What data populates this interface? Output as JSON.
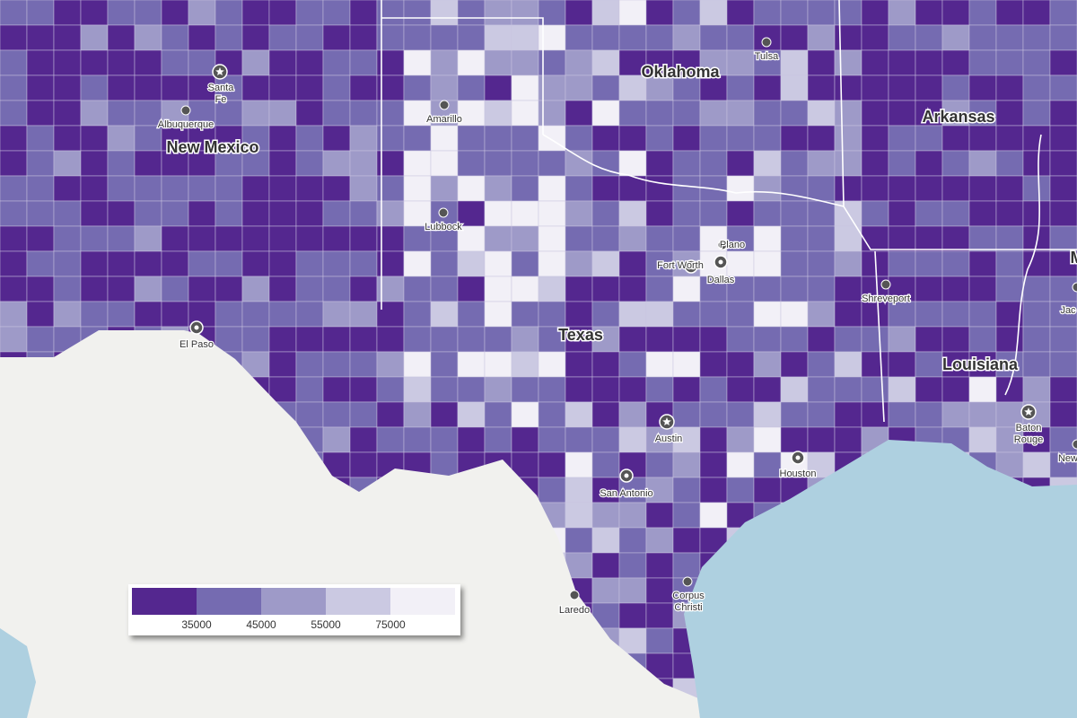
{
  "map": {
    "states": [
      "New Mexico",
      "Oklahoma",
      "Arkansas",
      "Texas",
      "Louisiana",
      "M"
    ],
    "cities": [
      {
        "lines": [
          "Santa",
          "Fe"
        ],
        "marker": "star"
      },
      {
        "lines": [
          "Albuquerque"
        ],
        "marker": "dot"
      },
      {
        "lines": [
          "Amarillo"
        ],
        "marker": "dot"
      },
      {
        "lines": [
          "Lubbock"
        ],
        "marker": "dot"
      },
      {
        "lines": [
          "Tulsa"
        ],
        "marker": "dot"
      },
      {
        "lines": [
          "Plano"
        ],
        "marker": "dot"
      },
      {
        "lines": [
          "Fort Worth"
        ],
        "marker": "ring"
      },
      {
        "lines": [
          "Dallas"
        ],
        "marker": "ring"
      },
      {
        "lines": [
          "El Paso"
        ],
        "marker": "ring"
      },
      {
        "lines": [
          "Austin"
        ],
        "marker": "star"
      },
      {
        "lines": [
          "San Antonio"
        ],
        "marker": "ring"
      },
      {
        "lines": [
          "Houston"
        ],
        "marker": "ring"
      },
      {
        "lines": [
          "Shreveport"
        ],
        "marker": "dot"
      },
      {
        "lines": [
          "Baton",
          "Rouge"
        ],
        "marker": "star"
      },
      {
        "lines": [
          "Laredo"
        ],
        "marker": "dot"
      },
      {
        "lines": [
          "Corpus",
          "Christi"
        ],
        "marker": "dot"
      },
      {
        "lines": [
          "Jac"
        ],
        "marker": "dot"
      },
      {
        "lines": [
          "New"
        ],
        "marker": "dot"
      }
    ],
    "legend": {
      "colors": [
        "#54278f",
        "#756bb1",
        "#9e9ac8",
        "#cbc9e2",
        "#f2f0f7"
      ],
      "ticks": [
        35000,
        45000,
        55000,
        75000
      ]
    }
  }
}
